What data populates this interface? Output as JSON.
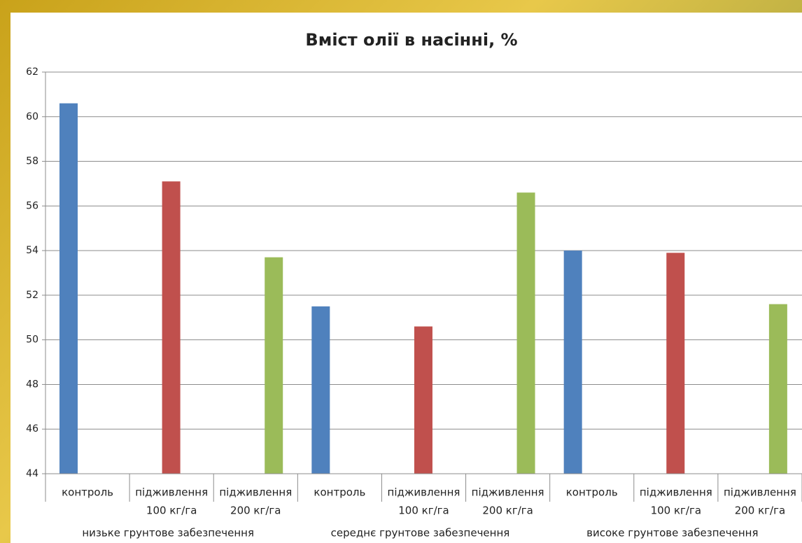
{
  "chart_data": {
    "type": "bar",
    "title": "Вміст олії в насінні, %",
    "categories": [
      [
        "контроль"
      ],
      [
        "підживлення",
        "100 кг/га"
      ],
      [
        "підживлення",
        "200 кг/га"
      ],
      [
        "контроль"
      ],
      [
        "підживлення",
        "100 кг/га"
      ],
      [
        "підживлення",
        "200 кг/га"
      ],
      [
        "контроль"
      ],
      [
        "підживлення",
        "100 кг/га"
      ],
      [
        "підживлення",
        "200 кг/га"
      ]
    ],
    "groups": [
      "низьке грунтове забезпечення",
      "середнє грунтове забезпечення",
      "високе грунтове забезпечення"
    ],
    "values": [
      60.6,
      57.1,
      53.7,
      51.5,
      50.6,
      56.6,
      54.0,
      53.9,
      51.6
    ],
    "colors": [
      "#4f81bd",
      "#c0504d",
      "#9bbb59",
      "#4f81bd",
      "#c0504d",
      "#9bbb59",
      "#4f81bd",
      "#c0504d",
      "#9bbb59"
    ],
    "ylim": [
      44,
      62
    ],
    "yticks": [
      44,
      46,
      48,
      50,
      52,
      54,
      56,
      58,
      60,
      62
    ],
    "grid": true
  }
}
